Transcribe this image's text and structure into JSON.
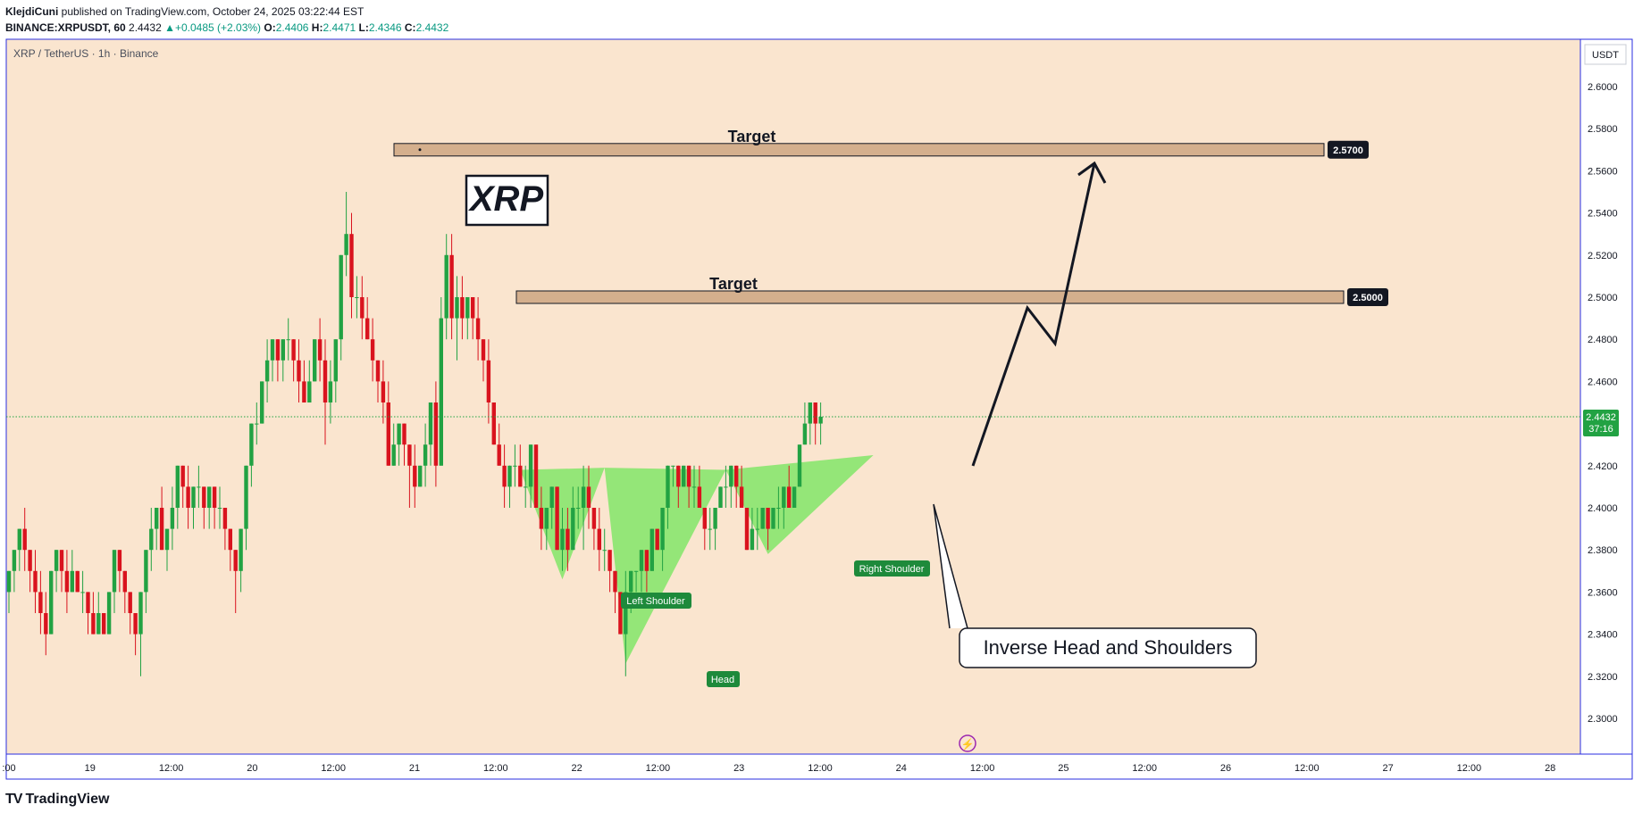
{
  "header": {
    "author": "KlejdiCuni",
    "published": " published on TradingView.com, October 24, 2025 03:22:44 EST",
    "symbol": "BINANCE:XRPUSDT, 60",
    "last": "2.4432",
    "change": "+0.0485 (+2.03%)",
    "o_label": "O:",
    "o": "2.4406",
    "h_label": "H:",
    "h": "2.4471",
    "l_label": "L:",
    "l": "2.4346",
    "c_label": "C:",
    "c": "2.4432"
  },
  "footer": {
    "logo_text": "TradingView"
  },
  "chart_data": {
    "type": "candlestick",
    "title": "XRP / TetherUS · 1h · Binance",
    "currency": "USDT",
    "ylim": [
      2.28,
      2.63
    ],
    "y_ticks": [
      2.3,
      2.32,
      2.34,
      2.36,
      2.38,
      2.4,
      2.42,
      2.44,
      2.46,
      2.48,
      2.5,
      2.52,
      2.54,
      2.56,
      2.58,
      2.6
    ],
    "x_ticks": [
      ":00",
      "19",
      "12:00",
      "20",
      "12:00",
      "21",
      "12:00",
      "22",
      "12:00",
      "23",
      "12:00",
      "24",
      "12:00",
      "25",
      "12:00",
      "26",
      "12:00",
      "27",
      "12:00",
      "28"
    ],
    "last_price": 2.4432,
    "last_price_label": "2.4432",
    "countdown": "37:16",
    "colors": {
      "up": "#22a243",
      "down": "#d9131e",
      "background": "#fae5cf",
      "pattern": "#8ee673"
    },
    "candles": [
      [
        2.36,
        2.37,
        2.35,
        2.37
      ],
      [
        2.37,
        2.38,
        2.36,
        2.38
      ],
      [
        2.38,
        2.39,
        2.37,
        2.39
      ],
      [
        2.39,
        2.4,
        2.37,
        2.38
      ],
      [
        2.38,
        2.38,
        2.36,
        2.37
      ],
      [
        2.37,
        2.38,
        2.35,
        2.36
      ],
      [
        2.36,
        2.37,
        2.34,
        2.35
      ],
      [
        2.35,
        2.36,
        2.33,
        2.34
      ],
      [
        2.34,
        2.37,
        2.34,
        2.37
      ],
      [
        2.37,
        2.38,
        2.36,
        2.38
      ],
      [
        2.38,
        2.38,
        2.36,
        2.37
      ],
      [
        2.37,
        2.38,
        2.35,
        2.36
      ],
      [
        2.36,
        2.38,
        2.36,
        2.37
      ],
      [
        2.37,
        2.37,
        2.36,
        2.36
      ],
      [
        2.36,
        2.37,
        2.35,
        2.36
      ],
      [
        2.36,
        2.36,
        2.34,
        2.35
      ],
      [
        2.35,
        2.36,
        2.34,
        2.34
      ],
      [
        2.34,
        2.36,
        2.34,
        2.35
      ],
      [
        2.35,
        2.35,
        2.34,
        2.34
      ],
      [
        2.34,
        2.36,
        2.34,
        2.36
      ],
      [
        2.36,
        2.38,
        2.35,
        2.38
      ],
      [
        2.38,
        2.38,
        2.36,
        2.37
      ],
      [
        2.37,
        2.37,
        2.35,
        2.36
      ],
      [
        2.36,
        2.36,
        2.34,
        2.35
      ],
      [
        2.35,
        2.35,
        2.33,
        2.34
      ],
      [
        2.34,
        2.36,
        2.32,
        2.36
      ],
      [
        2.36,
        2.38,
        2.35,
        2.38
      ],
      [
        2.38,
        2.4,
        2.37,
        2.39
      ],
      [
        2.39,
        2.4,
        2.38,
        2.4
      ],
      [
        2.4,
        2.41,
        2.38,
        2.38
      ],
      [
        2.38,
        2.39,
        2.37,
        2.39
      ],
      [
        2.39,
        2.41,
        2.38,
        2.4
      ],
      [
        2.4,
        2.42,
        2.39,
        2.42
      ],
      [
        2.42,
        2.42,
        2.4,
        2.41
      ],
      [
        2.41,
        2.42,
        2.39,
        2.4
      ],
      [
        2.4,
        2.41,
        2.39,
        2.41
      ],
      [
        2.41,
        2.42,
        2.4,
        2.41
      ],
      [
        2.41,
        2.41,
        2.39,
        2.4
      ],
      [
        2.4,
        2.41,
        2.39,
        2.41
      ],
      [
        2.41,
        2.41,
        2.39,
        2.4
      ],
      [
        2.4,
        2.41,
        2.39,
        2.4
      ],
      [
        2.4,
        2.4,
        2.38,
        2.39
      ],
      [
        2.39,
        2.39,
        2.37,
        2.38
      ],
      [
        2.38,
        2.38,
        2.35,
        2.37
      ],
      [
        2.37,
        2.39,
        2.36,
        2.39
      ],
      [
        2.39,
        2.42,
        2.38,
        2.42
      ],
      [
        2.42,
        2.44,
        2.41,
        2.44
      ],
      [
        2.44,
        2.45,
        2.43,
        2.44
      ],
      [
        2.44,
        2.46,
        2.44,
        2.46
      ],
      [
        2.46,
        2.48,
        2.45,
        2.47
      ],
      [
        2.47,
        2.48,
        2.46,
        2.48
      ],
      [
        2.48,
        2.48,
        2.46,
        2.47
      ],
      [
        2.47,
        2.48,
        2.46,
        2.48
      ],
      [
        2.48,
        2.49,
        2.47,
        2.48
      ],
      [
        2.48,
        2.48,
        2.46,
        2.47
      ],
      [
        2.47,
        2.48,
        2.45,
        2.46
      ],
      [
        2.46,
        2.47,
        2.45,
        2.45
      ],
      [
        2.45,
        2.47,
        2.45,
        2.46
      ],
      [
        2.46,
        2.48,
        2.46,
        2.48
      ],
      [
        2.48,
        2.49,
        2.46,
        2.47
      ],
      [
        2.47,
        2.48,
        2.43,
        2.45
      ],
      [
        2.45,
        2.47,
        2.44,
        2.46
      ],
      [
        2.46,
        2.48,
        2.45,
        2.48
      ],
      [
        2.48,
        2.52,
        2.47,
        2.52
      ],
      [
        2.52,
        2.55,
        2.51,
        2.53
      ],
      [
        2.53,
        2.54,
        2.49,
        2.5
      ],
      [
        2.5,
        2.51,
        2.49,
        2.5
      ],
      [
        2.5,
        2.51,
        2.48,
        2.49
      ],
      [
        2.49,
        2.5,
        2.48,
        2.48
      ],
      [
        2.48,
        2.49,
        2.46,
        2.47
      ],
      [
        2.47,
        2.47,
        2.45,
        2.46
      ],
      [
        2.46,
        2.47,
        2.44,
        2.45
      ],
      [
        2.45,
        2.46,
        2.42,
        2.42
      ],
      [
        2.42,
        2.44,
        2.42,
        2.43
      ],
      [
        2.43,
        2.44,
        2.42,
        2.44
      ],
      [
        2.44,
        2.44,
        2.42,
        2.43
      ],
      [
        2.43,
        2.43,
        2.4,
        2.42
      ],
      [
        2.42,
        2.43,
        2.4,
        2.41
      ],
      [
        2.41,
        2.42,
        2.41,
        2.42
      ],
      [
        2.42,
        2.44,
        2.41,
        2.43
      ],
      [
        2.43,
        2.45,
        2.42,
        2.45
      ],
      [
        2.45,
        2.46,
        2.41,
        2.42
      ],
      [
        2.42,
        2.5,
        2.42,
        2.49
      ],
      [
        2.49,
        2.53,
        2.48,
        2.52
      ],
      [
        2.52,
        2.53,
        2.48,
        2.49
      ],
      [
        2.49,
        2.51,
        2.47,
        2.5
      ],
      [
        2.5,
        2.51,
        2.48,
        2.49
      ],
      [
        2.49,
        2.5,
        2.48,
        2.5
      ],
      [
        2.5,
        2.5,
        2.48,
        2.49
      ],
      [
        2.49,
        2.5,
        2.47,
        2.48
      ],
      [
        2.48,
        2.48,
        2.46,
        2.47
      ],
      [
        2.47,
        2.48,
        2.44,
        2.45
      ],
      [
        2.45,
        2.45,
        2.43,
        2.43
      ],
      [
        2.43,
        2.44,
        2.42,
        2.42
      ],
      [
        2.42,
        2.43,
        2.4,
        2.41
      ],
      [
        2.41,
        2.42,
        2.4,
        2.42
      ],
      [
        2.42,
        2.43,
        2.41,
        2.42
      ],
      [
        2.42,
        2.43,
        2.41,
        2.41
      ],
      [
        2.41,
        2.42,
        2.4,
        2.41
      ],
      [
        2.41,
        2.43,
        2.4,
        2.43
      ],
      [
        2.43,
        2.43,
        2.4,
        2.4
      ],
      [
        2.4,
        2.41,
        2.38,
        2.39
      ],
      [
        2.39,
        2.4,
        2.38,
        2.4
      ],
      [
        2.4,
        2.41,
        2.39,
        2.41
      ],
      [
        2.41,
        2.41,
        2.38,
        2.38
      ],
      [
        2.38,
        2.4,
        2.37,
        2.39
      ],
      [
        2.39,
        2.4,
        2.37,
        2.38
      ],
      [
        2.38,
        2.41,
        2.38,
        2.4
      ],
      [
        2.4,
        2.41,
        2.39,
        2.4
      ],
      [
        2.4,
        2.42,
        2.38,
        2.41
      ],
      [
        2.41,
        2.42,
        2.39,
        2.4
      ],
      [
        2.4,
        2.4,
        2.38,
        2.39
      ],
      [
        2.39,
        2.4,
        2.37,
        2.38
      ],
      [
        2.38,
        2.39,
        2.37,
        2.38
      ],
      [
        2.38,
        2.38,
        2.36,
        2.37
      ],
      [
        2.37,
        2.37,
        2.35,
        2.36
      ],
      [
        2.36,
        2.36,
        2.34,
        2.34
      ],
      [
        2.34,
        2.37,
        2.32,
        2.36
      ],
      [
        2.36,
        2.37,
        2.35,
        2.37
      ],
      [
        2.37,
        2.37,
        2.36,
        2.37
      ],
      [
        2.37,
        2.38,
        2.36,
        2.38
      ],
      [
        2.38,
        2.38,
        2.36,
        2.37
      ],
      [
        2.37,
        2.39,
        2.37,
        2.39
      ],
      [
        2.39,
        2.39,
        2.38,
        2.38
      ],
      [
        2.38,
        2.4,
        2.37,
        2.4
      ],
      [
        2.4,
        2.42,
        2.39,
        2.42
      ],
      [
        2.42,
        2.42,
        2.41,
        2.42
      ],
      [
        2.42,
        2.42,
        2.4,
        2.41
      ],
      [
        2.41,
        2.42,
        2.41,
        2.42
      ],
      [
        2.42,
        2.42,
        2.4,
        2.41
      ],
      [
        2.41,
        2.42,
        2.4,
        2.41
      ],
      [
        2.41,
        2.42,
        2.4,
        2.4
      ],
      [
        2.4,
        2.4,
        2.38,
        2.39
      ],
      [
        2.39,
        2.4,
        2.38,
        2.39
      ],
      [
        2.39,
        2.4,
        2.38,
        2.4
      ],
      [
        2.4,
        2.41,
        2.4,
        2.41
      ],
      [
        2.41,
        2.42,
        2.4,
        2.41
      ],
      [
        2.41,
        2.42,
        2.4,
        2.42
      ],
      [
        2.42,
        2.42,
        2.4,
        2.41
      ],
      [
        2.41,
        2.42,
        2.4,
        2.4
      ],
      [
        2.4,
        2.4,
        2.38,
        2.38
      ],
      [
        2.38,
        2.4,
        2.38,
        2.39
      ],
      [
        2.39,
        2.4,
        2.38,
        2.39
      ],
      [
        2.39,
        2.4,
        2.39,
        2.4
      ],
      [
        2.4,
        2.4,
        2.38,
        2.39
      ],
      [
        2.39,
        2.4,
        2.39,
        2.4
      ],
      [
        2.4,
        2.41,
        2.39,
        2.4
      ],
      [
        2.4,
        2.41,
        2.39,
        2.41
      ],
      [
        2.41,
        2.42,
        2.4,
        2.4
      ],
      [
        2.4,
        2.41,
        2.4,
        2.41
      ],
      [
        2.41,
        2.43,
        2.41,
        2.43
      ],
      [
        2.43,
        2.45,
        2.43,
        2.44
      ],
      [
        2.44,
        2.45,
        2.43,
        2.45
      ],
      [
        2.45,
        2.45,
        2.43,
        2.44
      ],
      [
        2.44,
        2.45,
        2.43,
        2.4432
      ]
    ],
    "levels": [
      {
        "label": "Target",
        "value": 2.57,
        "value_label": "2.5700"
      },
      {
        "label": "Target",
        "value": 2.5,
        "value_label": "2.5000"
      }
    ],
    "annotations": {
      "symbol_box": "XRP",
      "left_shoulder": "Left Shoulder",
      "head": "Head",
      "right_shoulder": "Right Shoulder",
      "pattern_name": "Inverse Head and Shoulders"
    }
  }
}
